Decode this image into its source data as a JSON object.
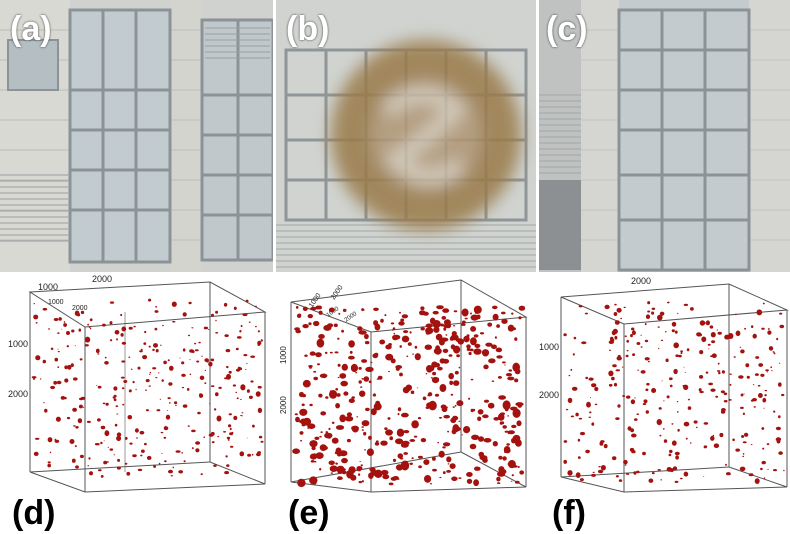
{
  "panels": {
    "a": {
      "label": "(a)"
    },
    "b": {
      "label": "(b)"
    },
    "c": {
      "label": "(c)"
    },
    "d": {
      "label": "(d)",
      "ticks": {
        "top_outer": "1000",
        "top_mid": "2000",
        "top_inner": "1000",
        "top_inner2": "2000",
        "side1": "1000",
        "side2": "2000"
      }
    },
    "e": {
      "label": "(e)",
      "ticks": {
        "diag1": "1000",
        "diag2": "2000",
        "diag3": "1000",
        "diag4": "2000",
        "side1": "1000",
        "side2": "2000"
      }
    },
    "f": {
      "label": "(f)",
      "ticks": {
        "top_mid": "2000",
        "side1": "1000",
        "side2": "2000"
      }
    }
  },
  "colors": {
    "defect": "#a3120f",
    "frame": "#555555",
    "glass": "#c9d2d6",
    "wall": "#d6d6d2",
    "stain": "#8a6a3a"
  }
}
